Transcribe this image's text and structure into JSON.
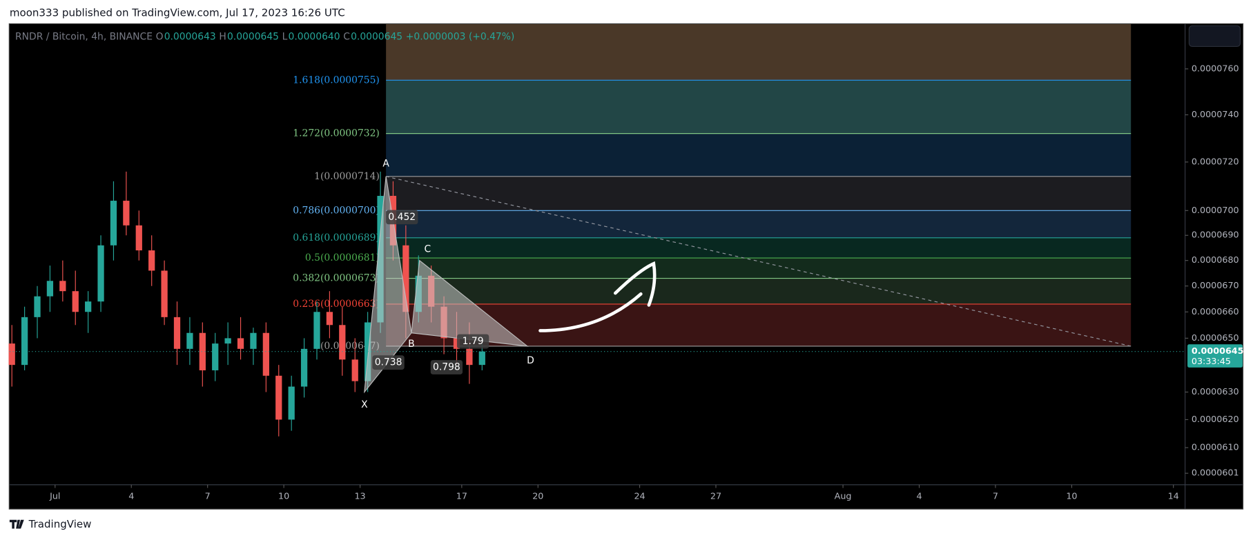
{
  "header": {
    "published": "moon333 published on TradingView.com, Jul 17, 2023 16:26 UTC"
  },
  "legend": {
    "symbol": "RNDR / Bitcoin, 4h, BINANCE",
    "ohlc": [
      {
        "key": "O",
        "value": 6.43e-05,
        "label": "0.0000643"
      },
      {
        "key": "H",
        "value": 6.45e-05,
        "label": "0.0000645"
      },
      {
        "key": "L",
        "value": 6.4e-05,
        "label": "0.0000640"
      },
      {
        "key": "C",
        "value": 6.45e-05,
        "label": "0.0000645"
      }
    ],
    "change": "+0.0000003 (+0.47%)"
  },
  "footer": {
    "brand": "TradingView"
  },
  "chart_data": {
    "type": "candlestick",
    "log_scale": true,
    "up_color": "#26a69a",
    "down_color": "#ef5350",
    "xlim": [
      -0.79,
      45.46
    ],
    "ylim": [
      5.97e-05,
      7.8e-05
    ],
    "xticks": [
      {
        "value": 1,
        "label": "Jul"
      },
      4,
      7,
      10,
      13,
      17,
      20,
      24,
      27,
      {
        "value": 32,
        "label": "Aug"
      },
      {
        "value": 35,
        "label": "4"
      },
      {
        "value": 38,
        "label": "7"
      },
      {
        "value": 41,
        "label": "10"
      },
      {
        "value": 45,
        "label": "14"
      }
    ],
    "yticks": [
      {
        "value": 7.6e-05,
        "label": "0.0000760"
      },
      {
        "value": 7.4e-05,
        "label": "0.0000740"
      },
      {
        "value": 7.2e-05,
        "label": "0.0000720"
      },
      {
        "value": 7e-05,
        "label": "0.0000700"
      },
      {
        "value": 6.9e-05,
        "label": "0.0000690"
      },
      {
        "value": 6.8e-05,
        "label": "0.0000680"
      },
      {
        "value": 6.7e-05,
        "label": "0.0000670"
      },
      {
        "value": 6.6e-05,
        "label": "0.0000660"
      },
      {
        "value": 6.5e-05,
        "label": "0.0000650"
      },
      {
        "value": 6.3e-05,
        "label": "0.0000630"
      },
      {
        "value": 6.2e-05,
        "label": "0.0000620"
      },
      {
        "value": 6.1e-05,
        "label": "0.0000610"
      },
      6.01e-05
    ],
    "x": [
      -0.7,
      -0.2,
      0.3,
      0.8,
      1.3,
      1.8,
      2.3,
      2.8,
      3.3,
      3.8,
      4.3,
      4.8,
      5.3,
      5.8,
      6.3,
      6.8,
      7.3,
      7.8,
      8.3,
      8.8,
      9.3,
      9.8,
      10.3,
      10.8,
      11.3,
      11.8,
      12.3,
      12.8,
      13.3,
      13.8,
      14.3,
      14.8,
      15.3,
      15.8,
      16.3,
      16.8,
      17.3,
      17.8
    ],
    "open": [
      6.48e-05,
      6.4e-05,
      6.58e-05,
      6.66e-05,
      6.72e-05,
      6.68e-05,
      6.6e-05,
      6.64e-05,
      6.86e-05,
      7.04e-05,
      6.94e-05,
      6.84e-05,
      6.76e-05,
      6.58e-05,
      6.46e-05,
      6.52e-05,
      6.38e-05,
      6.48e-05,
      6.5e-05,
      6.46e-05,
      6.52e-05,
      6.36e-05,
      6.2e-05,
      6.32e-05,
      6.46e-05,
      6.6e-05,
      6.55e-05,
      6.42e-05,
      6.34e-05,
      6.56e-05,
      7.06e-05,
      6.86e-05,
      6.6e-05,
      6.74e-05,
      6.62e-05,
      6.5e-05,
      6.46e-05,
      6.4e-05
    ],
    "high": [
      6.55e-05,
      6.62e-05,
      6.7e-05,
      6.78e-05,
      6.8e-05,
      6.76e-05,
      6.68e-05,
      6.9e-05,
      7.12e-05,
      7.16e-05,
      7e-05,
      6.9e-05,
      6.8e-05,
      6.64e-05,
      6.58e-05,
      6.56e-05,
      6.52e-05,
      6.56e-05,
      6.58e-05,
      6.54e-05,
      6.56e-05,
      6.4e-05,
      6.36e-05,
      6.5e-05,
      6.64e-05,
      6.68e-05,
      6.62e-05,
      6.5e-05,
      6.6e-05,
      7.16e-05,
      7.12e-05,
      6.94e-05,
      6.82e-05,
      6.78e-05,
      6.66e-05,
      6.6e-05,
      6.56e-05,
      6.48e-05
    ],
    "low": [
      6.32e-05,
      6.38e-05,
      6.5e-05,
      6.6e-05,
      6.64e-05,
      6.55e-05,
      6.52e-05,
      6.6e-05,
      6.8e-05,
      6.9e-05,
      6.8e-05,
      6.7e-05,
      6.55e-05,
      6.4e-05,
      6.4e-05,
      6.32e-05,
      6.34e-05,
      6.4e-05,
      6.42e-05,
      6.4e-05,
      6.3e-05,
      6.14e-05,
      6.16e-05,
      6.28e-05,
      6.42e-05,
      6.5e-05,
      6.36e-05,
      6.3e-05,
      6.3e-05,
      6.52e-05,
      6.8e-05,
      6.5e-05,
      6.56e-05,
      6.56e-05,
      6.44e-05,
      6.4e-05,
      6.33e-05,
      6.38e-05
    ],
    "close": [
      6.4e-05,
      6.58e-05,
      6.66e-05,
      6.72e-05,
      6.68e-05,
      6.6e-05,
      6.64e-05,
      6.86e-05,
      7.04e-05,
      6.94e-05,
      6.84e-05,
      6.76e-05,
      6.58e-05,
      6.46e-05,
      6.52e-05,
      6.38e-05,
      6.48e-05,
      6.5e-05,
      6.46e-05,
      6.52e-05,
      6.36e-05,
      6.2e-05,
      6.32e-05,
      6.46e-05,
      6.6e-05,
      6.55e-05,
      6.42e-05,
      6.34e-05,
      6.56e-05,
      7.06e-05,
      6.86e-05,
      6.6e-05,
      6.74e-05,
      6.62e-05,
      6.5e-05,
      6.46e-05,
      6.4e-05,
      6.45e-05
    ],
    "last_price": {
      "value": 6.45e-05,
      "label": "0.0000645",
      "timer": "03:33:45"
    },
    "fib": {
      "end_x": 43.33,
      "levels": [
        {
          "ratio": 1.618,
          "price": 7.55e-05,
          "label": "1.618(0.0000755)",
          "color": "#2196f3",
          "fill": "#4a3828"
        },
        {
          "ratio": 1.272,
          "price": 7.32e-05,
          "label": "1.272(0.0000732)",
          "color": "#81c784",
          "fill": "#224646"
        },
        {
          "ratio": 1,
          "price": 7.14e-05,
          "label": "1(0.0000714)",
          "color": "#9e9e9e",
          "fill": "#0b2136"
        },
        {
          "ratio": 0.786,
          "price": 7e-05,
          "label": "0.786(0.0000700)",
          "color": "#64b5f6",
          "fill": "#1c1c20"
        },
        {
          "ratio": 0.618,
          "price": 6.89e-05,
          "label": "0.618(0.0000689)",
          "color": "#26a69a",
          "fill": "#13263b"
        },
        {
          "ratio": 0.5,
          "price": 6.81e-05,
          "label": "0.5(0.0000681)",
          "color": "#4caf50",
          "fill": "#082820"
        },
        {
          "ratio": 0.382,
          "price": 6.73e-05,
          "label": "0.382(0.0000673)",
          "color": "#81c784",
          "fill": "#132b1c"
        },
        {
          "ratio": 0.236,
          "price": 6.63e-05,
          "label": "0.236(0.0000663)",
          "color": "#f44336",
          "fill": "#1a281c"
        },
        {
          "ratio": 0,
          "price": 6.47e-05,
          "label": "0(0.0000647)",
          "color": "#9e9e9e",
          "fill": "#3a1414"
        }
      ]
    },
    "pattern": {
      "points": [
        {
          "label": "X",
          "x": 13.17,
          "price": 6.3e-05
        },
        {
          "label": "A",
          "x": 14.02,
          "price": 7.14e-05
        },
        {
          "label": "B",
          "x": 15.02,
          "price": 6.52e-05
        },
        {
          "label": "C",
          "x": 15.34,
          "price": 6.8e-05
        },
        {
          "label": "D",
          "x": 19.58,
          "price": 6.47e-05
        }
      ],
      "ratios": [
        {
          "value": 0.452,
          "label": "0.452"
        },
        {
          "value": 0.738,
          "label": "0.738"
        },
        {
          "value": 0.798,
          "label": "0.798"
        },
        {
          "value": 1.79,
          "label": "1.79"
        }
      ]
    }
  }
}
